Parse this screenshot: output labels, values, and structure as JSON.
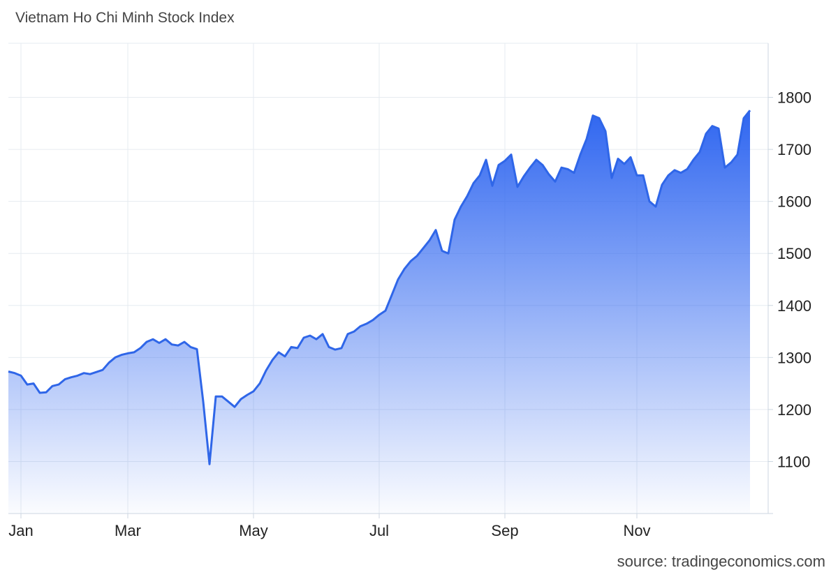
{
  "chart_data": {
    "type": "area",
    "title": "Vietnam Ho Chi Minh Stock Index",
    "source": "source: tradingeconomics.com",
    "color": "#2f66e8",
    "categories": [
      null,
      null,
      "Jan",
      null,
      null,
      null,
      null,
      null,
      null,
      null,
      null,
      null,
      null,
      null,
      null,
      null,
      null,
      null,
      null,
      "Mar",
      null,
      null,
      null,
      null,
      null,
      null,
      null,
      null,
      null,
      null,
      null,
      null,
      null,
      null,
      null,
      null,
      null,
      null,
      null,
      "May",
      null,
      null,
      null,
      null,
      null,
      null,
      null,
      null,
      null,
      null,
      null,
      null,
      null,
      null,
      null,
      null,
      null,
      null,
      null,
      "Jul",
      null,
      null,
      null,
      null,
      null,
      null,
      null,
      null,
      null,
      null,
      null,
      null,
      null,
      null,
      null,
      null,
      null,
      null,
      null,
      "Sep",
      null,
      null,
      null,
      null,
      null,
      null,
      null,
      null,
      null,
      null,
      null,
      null,
      null,
      null,
      null,
      null,
      null,
      null,
      null,
      null,
      "Nov",
      null,
      null,
      null,
      null,
      null,
      null,
      null,
      null,
      null,
      null,
      null,
      null,
      null,
      null,
      null,
      null,
      null,
      null
    ],
    "values": [
      1273,
      1270,
      1265,
      1248,
      1250,
      1232,
      1233,
      1245,
      1248,
      1258,
      1262,
      1265,
      1270,
      1268,
      1272,
      1276,
      1290,
      1300,
      1305,
      1308,
      1310,
      1318,
      1330,
      1335,
      1328,
      1335,
      1325,
      1323,
      1330,
      1320,
      1316,
      1215,
      1095,
      1225,
      1225,
      1215,
      1205,
      1220,
      1228,
      1235,
      1250,
      1275,
      1295,
      1310,
      1302,
      1320,
      1318,
      1338,
      1342,
      1335,
      1345,
      1320,
      1315,
      1318,
      1345,
      1350,
      1360,
      1365,
      1372,
      1382,
      1390,
      1420,
      1450,
      1470,
      1485,
      1495,
      1510,
      1525,
      1545,
      1505,
      1500,
      1565,
      1590,
      1610,
      1635,
      1650,
      1680,
      1630,
      1670,
      1678,
      1690,
      1628,
      1648,
      1665,
      1680,
      1670,
      1652,
      1638,
      1665,
      1662,
      1655,
      1690,
      1720,
      1765,
      1760,
      1735,
      1645,
      1682,
      1672,
      1685,
      1650,
      1650,
      1600,
      1590,
      1632,
      1650,
      1660,
      1655,
      1662,
      1680,
      1695,
      1730,
      1745,
      1740,
      1665,
      1675,
      1690,
      1760,
      1775
    ],
    "ylim": [
      1000,
      1900
    ],
    "yticks": [
      1100,
      1200,
      1300,
      1400,
      1500,
      1600,
      1700,
      1800
    ],
    "grid": true
  }
}
